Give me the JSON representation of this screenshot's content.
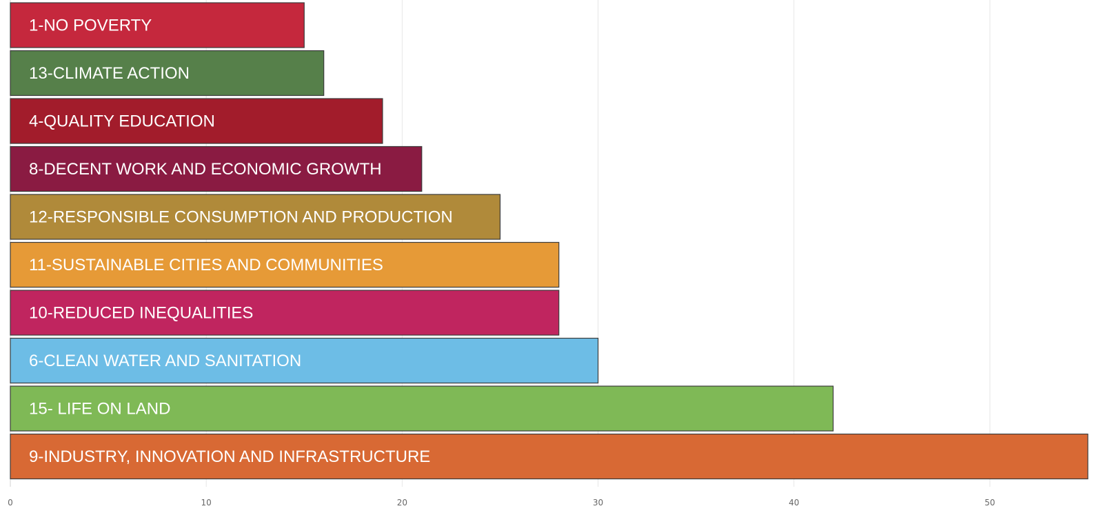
{
  "chart_data": {
    "type": "bar",
    "orientation": "horizontal",
    "title": "",
    "xlabel": "",
    "ylabel": "",
    "xlim": [
      0,
      55
    ],
    "grid": true,
    "x_ticks": [
      0,
      10,
      20,
      30,
      40,
      50
    ],
    "categories": [
      "1-NO POVERTY",
      "13-CLIMATE ACTION",
      "4-QUALITY EDUCATION",
      "8-DECENT WORK AND ECONOMIC GROWTH",
      "12-RESPONSIBLE CONSUMPTION AND PRODUCTION",
      "11-SUSTAINABLE CITIES AND COMMUNITIES",
      "10-REDUCED INEQUALITIES",
      "6-CLEAN WATER AND SANITATION",
      "15- LIFE ON LAND",
      "9-INDUSTRY, INNOVATION AND INFRASTRUCTURE"
    ],
    "values": [
      15,
      16,
      19,
      21,
      25,
      28,
      28,
      30,
      42,
      55
    ],
    "colors": [
      "#c5283d",
      "#56804a",
      "#a21c2b",
      "#8a1b42",
      "#b08a3a",
      "#e69a37",
      "#c0255f",
      "#6dbde6",
      "#7fb956",
      "#d86934"
    ],
    "label_color": "#ffffff",
    "grid_color": "#e6e6e6",
    "bar_border_color": "#3b3b3b"
  }
}
